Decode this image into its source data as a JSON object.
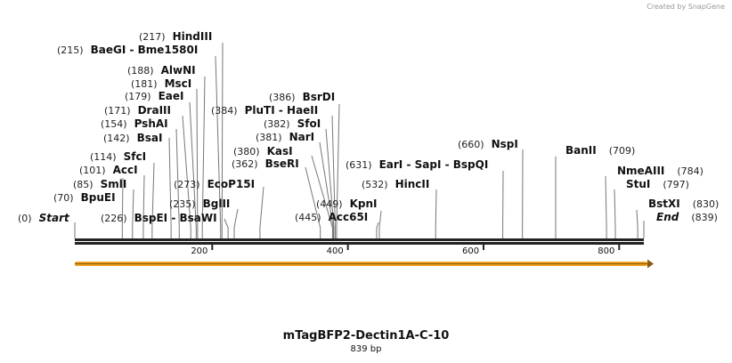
{
  "credit": "Created by SnapGene",
  "title": "mTagBFP2-Dectin1A-C-10",
  "length_label": "839 bp",
  "length": 839,
  "ticks": [
    "200",
    "400",
    "600",
    "800"
  ],
  "feature_color": "#f5a623",
  "sites": [
    {
      "pos": "(0)",
      "name": "Start",
      "bp": 0,
      "italic": true
    },
    {
      "pos": "(70)",
      "name": "BpuEI",
      "bp": 70
    },
    {
      "pos": "(85)",
      "name": "SmlI",
      "bp": 85
    },
    {
      "pos": "(101)",
      "name": "AccI",
      "bp": 101
    },
    {
      "pos": "(114)",
      "name": "SfcI",
      "bp": 114
    },
    {
      "pos": "(142)",
      "name": "BsaI",
      "bp": 142
    },
    {
      "pos": "(154)",
      "name": "PshAI",
      "bp": 154
    },
    {
      "pos": "(171)",
      "name": "DraIII",
      "bp": 171
    },
    {
      "pos": "(179)",
      "name": "EaeI",
      "bp": 179
    },
    {
      "pos": "(181)",
      "name": "MscI",
      "bp": 181
    },
    {
      "pos": "(188)",
      "name": "AlwNI",
      "bp": 188
    },
    {
      "pos": "(215)",
      "name": "BaeGI  - Bme1580I",
      "bp": 215
    },
    {
      "pos": "(217)",
      "name": "HindIII",
      "bp": 217
    },
    {
      "pos": "(226)",
      "name": "BspEI  - BsaWI",
      "bp": 226
    },
    {
      "pos": "(235)",
      "name": "BglII",
      "bp": 235
    },
    {
      "pos": "(273)",
      "name": "EcoP15I",
      "bp": 273
    },
    {
      "pos": "(362)",
      "name": "BseRI",
      "bp": 362
    },
    {
      "pos": "(380)",
      "name": "KasI",
      "bp": 380
    },
    {
      "pos": "(381)",
      "name": "NarI",
      "bp": 381
    },
    {
      "pos": "(382)",
      "name": "SfoI",
      "bp": 382
    },
    {
      "pos": "(384)",
      "name": "PluTI  - HaeII",
      "bp": 384
    },
    {
      "pos": "(386)",
      "name": "BsrDI",
      "bp": 386
    },
    {
      "pos": "(445)",
      "name": "Acc65I",
      "bp": 445
    },
    {
      "pos": "(449)",
      "name": "KpnI",
      "bp": 449
    },
    {
      "pos": "(532)",
      "name": "HincII",
      "bp": 532
    },
    {
      "pos": "(631)",
      "name": "EarI  - SapI  - BspQI",
      "bp": 631
    },
    {
      "pos": "(660)",
      "name": "NspI",
      "bp": 660
    },
    {
      "pos": "(709)",
      "name": "BanII",
      "bp": 709,
      "after": true
    },
    {
      "pos": "(784)",
      "name": "NmeAIII",
      "bp": 784,
      "after": true
    },
    {
      "pos": "(797)",
      "name": "StuI",
      "bp": 797,
      "after": true
    },
    {
      "pos": "(830)",
      "name": "BstXI",
      "bp": 830,
      "after": true
    },
    {
      "pos": "(839)",
      "name": "End",
      "bp": 839,
      "after": true,
      "italic": true
    }
  ]
}
